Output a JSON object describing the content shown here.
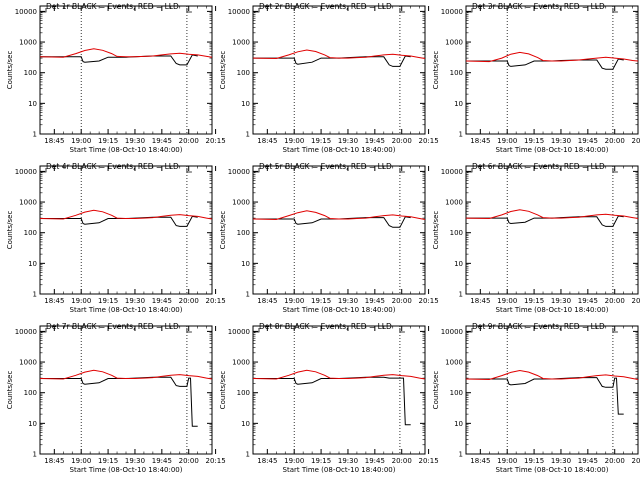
{
  "colors": {
    "events": "#000000",
    "lld": "#e00000",
    "axes": "#000000",
    "background": "#ffffff"
  },
  "chart_data": [
    {
      "type": "line",
      "title": "Det 1r BLACK = Events, RED = LLD",
      "xlabel": "Start Time (08-Oct-10 18:40:00)",
      "ylabel": "Counts/sec",
      "xticks": [
        "18:45",
        "19:00",
        "19:15",
        "19:30",
        "19:45",
        "20:00",
        "20:15"
      ],
      "xlim_minutes": [
        0,
        39
      ],
      "ylim": [
        1,
        15000
      ],
      "ytick_labels": [
        "1",
        "10",
        "100",
        "1000",
        "10000"
      ],
      "y_scale": "log",
      "grid": false,
      "vertical_lines_minutes": [
        20,
        79
      ],
      "series": [
        {
          "name": "Events",
          "color": "#000000",
          "x": [
            -3,
            20,
            21,
            22,
            30,
            35,
            40,
            45,
            50,
            60,
            70,
            73,
            75,
            79,
            82,
            85
          ],
          "y": [
            330,
            330,
            230,
            220,
            240,
            320,
            320,
            320,
            330,
            350,
            350,
            200,
            180,
            180,
            380,
            350
          ]
        },
        {
          "name": "LLD",
          "color": "#e00000",
          "x": [
            -3,
            10,
            17,
            22,
            27,
            32,
            37,
            40,
            45,
            50,
            55,
            60,
            65,
            70,
            75,
            80,
            85,
            90,
            93
          ],
          "y": [
            330,
            320,
            420,
            530,
            600,
            540,
            420,
            340,
            330,
            330,
            340,
            350,
            380,
            410,
            430,
            400,
            380,
            340,
            320
          ]
        }
      ]
    },
    {
      "type": "line",
      "title": "Det 2r BLACK = Events, RED = LLD",
      "xlabel": "Start Time (08-Oct-10 18:40:00)",
      "ylabel": "Counts/sec",
      "xticks": [
        "18:45",
        "19:00",
        "19:15",
        "19:30",
        "19:45",
        "20:00",
        "20:15"
      ],
      "xlim_minutes": [
        0,
        39
      ],
      "ylim": [
        1,
        15000
      ],
      "ytick_labels": [
        "1",
        "10",
        "100",
        "1000",
        "10000"
      ],
      "y_scale": "log",
      "grid": false,
      "vertical_lines_minutes": [
        20,
        79
      ],
      "series": [
        {
          "name": "Events",
          "color": "#000000",
          "x": [
            -3,
            20,
            21,
            22,
            30,
            35,
            40,
            45,
            50,
            60,
            70,
            73,
            75,
            79,
            82,
            85
          ],
          "y": [
            300,
            300,
            200,
            190,
            220,
            300,
            300,
            300,
            310,
            330,
            330,
            180,
            160,
            160,
            350,
            330
          ]
        },
        {
          "name": "LLD",
          "color": "#e00000",
          "x": [
            -3,
            10,
            17,
            22,
            27,
            32,
            37,
            40,
            45,
            50,
            55,
            60,
            65,
            70,
            75,
            80,
            85,
            90,
            93
          ],
          "y": [
            300,
            290,
            380,
            480,
            550,
            490,
            380,
            310,
            300,
            300,
            310,
            320,
            350,
            380,
            400,
            370,
            350,
            310,
            290
          ]
        }
      ]
    },
    {
      "type": "line",
      "title": "Det 3r BLACK = Events, RED = LLD",
      "xlabel": "Start Time (08-Oct-10 18:40:00)",
      "ylabel": "Counts/sec",
      "xticks": [
        "18:45",
        "19:00",
        "19:15",
        "19:30",
        "19:45",
        "20:00",
        "20:15"
      ],
      "xlim_minutes": [
        0,
        39
      ],
      "ylim": [
        1,
        15000
      ],
      "ytick_labels": [
        "1",
        "10",
        "100",
        "1000",
        "10000"
      ],
      "y_scale": "log",
      "grid": false,
      "vertical_lines_minutes": [
        20,
        79
      ],
      "series": [
        {
          "name": "Events",
          "color": "#000000",
          "x": [
            -3,
            20,
            21,
            22,
            30,
            35,
            40,
            45,
            50,
            60,
            70,
            73,
            75,
            79,
            82,
            85
          ],
          "y": [
            240,
            240,
            170,
            160,
            180,
            240,
            240,
            240,
            250,
            260,
            260,
            140,
            130,
            130,
            280,
            260
          ]
        },
        {
          "name": "LLD",
          "color": "#e00000",
          "x": [
            -3,
            10,
            17,
            22,
            27,
            32,
            37,
            40,
            45,
            50,
            55,
            60,
            65,
            70,
            75,
            80,
            85,
            90,
            93
          ],
          "y": [
            240,
            230,
            300,
            400,
            460,
            410,
            310,
            250,
            240,
            240,
            250,
            260,
            280,
            300,
            320,
            300,
            280,
            250,
            240
          ]
        }
      ]
    },
    {
      "type": "line",
      "title": "Det 4r BLACK = Events, RED = LLD",
      "xlabel": "Start Time (08-Oct-10 18:40:00)",
      "ylabel": "Counts/sec",
      "xticks": [
        "18:45",
        "19:00",
        "19:15",
        "19:30",
        "19:45",
        "20:00",
        "20:15"
      ],
      "xlim_minutes": [
        0,
        39
      ],
      "ylim": [
        1,
        15000
      ],
      "ytick_labels": [
        "1",
        "10",
        "100",
        "1000",
        "10000"
      ],
      "y_scale": "log",
      "grid": false,
      "vertical_lines_minutes": [
        20,
        79
      ],
      "series": [
        {
          "name": "Events",
          "color": "#000000",
          "x": [
            -3,
            20,
            21,
            22,
            30,
            35,
            40,
            45,
            50,
            60,
            70,
            73,
            75,
            79,
            82,
            85
          ],
          "y": [
            290,
            290,
            200,
            190,
            210,
            290,
            290,
            290,
            300,
            320,
            320,
            170,
            160,
            160,
            340,
            320
          ]
        },
        {
          "name": "LLD",
          "color": "#e00000",
          "x": [
            -3,
            10,
            17,
            22,
            27,
            32,
            37,
            40,
            45,
            50,
            55,
            60,
            65,
            70,
            75,
            80,
            85,
            90,
            93
          ],
          "y": [
            290,
            280,
            370,
            470,
            540,
            480,
            370,
            300,
            290,
            290,
            300,
            310,
            340,
            370,
            390,
            360,
            340,
            300,
            280
          ]
        }
      ]
    },
    {
      "type": "line",
      "title": "Det 5r BLACK = Events, RED = LLD",
      "xlabel": "Start Time (08-Oct-10 18:40:00)",
      "ylabel": "Counts/sec",
      "xticks": [
        "18:45",
        "19:00",
        "19:15",
        "19:30",
        "19:45",
        "20:00",
        "20:15"
      ],
      "xlim_minutes": [
        0,
        39
      ],
      "ylim": [
        1,
        15000
      ],
      "ytick_labels": [
        "1",
        "10",
        "100",
        "1000",
        "10000"
      ],
      "y_scale": "log",
      "grid": false,
      "vertical_lines_minutes": [
        20,
        79
      ],
      "series": [
        {
          "name": "Events",
          "color": "#000000",
          "x": [
            -3,
            20,
            21,
            22,
            30,
            35,
            40,
            45,
            50,
            60,
            70,
            73,
            75,
            79,
            82,
            85
          ],
          "y": [
            280,
            280,
            200,
            190,
            210,
            280,
            280,
            280,
            290,
            310,
            310,
            170,
            150,
            150,
            330,
            310
          ]
        },
        {
          "name": "LLD",
          "color": "#e00000",
          "x": [
            -3,
            10,
            17,
            22,
            27,
            32,
            37,
            40,
            45,
            50,
            55,
            60,
            65,
            70,
            75,
            80,
            85,
            90,
            93
          ],
          "y": [
            280,
            270,
            360,
            450,
            520,
            460,
            360,
            290,
            280,
            280,
            290,
            300,
            330,
            360,
            380,
            350,
            330,
            290,
            270
          ]
        }
      ]
    },
    {
      "type": "line",
      "title": "Det 6r BLACK = Events, RED = LLD",
      "xlabel": "Start Time (08-Oct-10 18:40:00)",
      "ylabel": "Counts/sec",
      "xticks": [
        "18:45",
        "19:00",
        "19:15",
        "19:30",
        "19:45",
        "20:00",
        "20:15"
      ],
      "xlim_minutes": [
        0,
        39
      ],
      "ylim": [
        1,
        15000
      ],
      "ytick_labels": [
        "1",
        "10",
        "100",
        "1000",
        "10000"
      ],
      "y_scale": "log",
      "grid": false,
      "vertical_lines_minutes": [
        20,
        79
      ],
      "series": [
        {
          "name": "Events",
          "color": "#000000",
          "x": [
            -3,
            20,
            21,
            22,
            30,
            35,
            40,
            45,
            50,
            60,
            70,
            73,
            75,
            79,
            82,
            85
          ],
          "y": [
            300,
            300,
            210,
            200,
            220,
            300,
            300,
            300,
            310,
            330,
            330,
            180,
            160,
            160,
            350,
            330
          ]
        },
        {
          "name": "LLD",
          "color": "#e00000",
          "x": [
            -3,
            10,
            17,
            22,
            27,
            32,
            37,
            40,
            45,
            50,
            55,
            60,
            65,
            70,
            75,
            80,
            85,
            90,
            93
          ],
          "y": [
            300,
            290,
            380,
            490,
            560,
            500,
            380,
            310,
            300,
            300,
            310,
            320,
            350,
            380,
            400,
            370,
            350,
            310,
            290
          ]
        }
      ]
    },
    {
      "type": "line",
      "title": "Det 7r BLACK = Events, RED = LLD",
      "xlabel": "Start Time (08-Oct-10 18:40:00)",
      "ylabel": "Counts/sec",
      "xticks": [
        "18:45",
        "19:00",
        "19:15",
        "19:30",
        "19:45",
        "20:00",
        "20:15"
      ],
      "xlim_minutes": [
        0,
        39
      ],
      "ylim": [
        1,
        15000
      ],
      "ytick_labels": [
        "1",
        "10",
        "100",
        "1000",
        "10000"
      ],
      "y_scale": "log",
      "grid": false,
      "vertical_lines_minutes": [
        20,
        79
      ],
      "series": [
        {
          "name": "Events",
          "color": "#000000",
          "x": [
            -3,
            20,
            21,
            22,
            30,
            35,
            40,
            45,
            50,
            60,
            70,
            73,
            75,
            79,
            80,
            81,
            82,
            85
          ],
          "y": [
            290,
            290,
            200,
            190,
            210,
            290,
            290,
            290,
            300,
            320,
            320,
            170,
            160,
            160,
            300,
            300,
            8,
            8
          ]
        },
        {
          "name": "LLD",
          "color": "#e00000",
          "x": [
            -3,
            10,
            17,
            22,
            27,
            32,
            37,
            40,
            45,
            50,
            55,
            60,
            65,
            70,
            75,
            80,
            85,
            90,
            93
          ],
          "y": [
            290,
            280,
            370,
            470,
            540,
            480,
            370,
            300,
            290,
            290,
            300,
            310,
            340,
            370,
            390,
            360,
            340,
            300,
            280
          ]
        }
      ]
    },
    {
      "type": "line",
      "title": "Det 8r BLACK = Events, RED = LLD",
      "xlabel": "Start Time (08-Oct-10 18:40:00)",
      "ylabel": "Counts/sec",
      "xticks": [
        "18:45",
        "19:00",
        "19:15",
        "19:30",
        "19:45",
        "20:00",
        "20:15"
      ],
      "xlim_minutes": [
        0,
        39
      ],
      "ylim": [
        1,
        15000
      ],
      "ytick_labels": [
        "1",
        "10",
        "100",
        "1000",
        "10000"
      ],
      "y_scale": "log",
      "grid": false,
      "vertical_lines_minutes": [
        20,
        79
      ],
      "series": [
        {
          "name": "Events",
          "color": "#000000",
          "x": [
            -3,
            20,
            21,
            22,
            30,
            35,
            40,
            45,
            50,
            60,
            70,
            73,
            75,
            78,
            80,
            81,
            82,
            85
          ],
          "y": [
            290,
            290,
            200,
            190,
            210,
            290,
            290,
            290,
            300,
            320,
            320,
            300,
            300,
            300,
            300,
            300,
            9,
            9
          ]
        },
        {
          "name": "LLD",
          "color": "#e00000",
          "x": [
            -3,
            10,
            17,
            22,
            27,
            32,
            37,
            40,
            45,
            50,
            55,
            60,
            65,
            70,
            75,
            80,
            85,
            90,
            93
          ],
          "y": [
            290,
            280,
            370,
            470,
            540,
            480,
            370,
            300,
            290,
            290,
            300,
            310,
            340,
            370,
            390,
            360,
            340,
            300,
            280
          ]
        }
      ]
    },
    {
      "type": "line",
      "title": "Det 9r BLACK = Events, RED = LLD",
      "xlabel": "Start Time (08-Oct-10 18:40:00)",
      "ylabel": "Counts/sec",
      "xticks": [
        "18:45",
        "19:00",
        "19:15",
        "19:30",
        "19:45",
        "20:00",
        "20:15"
      ],
      "xlim_minutes": [
        0,
        39
      ],
      "ylim": [
        1,
        15000
      ],
      "ytick_labels": [
        "1",
        "10",
        "100",
        "1000",
        "10000"
      ],
      "y_scale": "log",
      "grid": false,
      "vertical_lines_minutes": [
        20,
        79
      ],
      "series": [
        {
          "name": "Events",
          "color": "#000000",
          "x": [
            -3,
            20,
            21,
            22,
            30,
            35,
            40,
            45,
            50,
            60,
            70,
            73,
            75,
            79,
            80,
            81,
            82,
            85
          ],
          "y": [
            280,
            280,
            190,
            180,
            200,
            280,
            280,
            280,
            290,
            310,
            310,
            160,
            150,
            150,
            300,
            300,
            20,
            20
          ]
        },
        {
          "name": "LLD",
          "color": "#e00000",
          "x": [
            -3,
            10,
            17,
            22,
            27,
            32,
            37,
            40,
            45,
            50,
            55,
            60,
            65,
            70,
            75,
            80,
            85,
            90,
            93
          ],
          "y": [
            280,
            270,
            360,
            460,
            530,
            470,
            360,
            290,
            280,
            280,
            290,
            300,
            330,
            360,
            380,
            350,
            330,
            290,
            270
          ]
        }
      ]
    }
  ]
}
